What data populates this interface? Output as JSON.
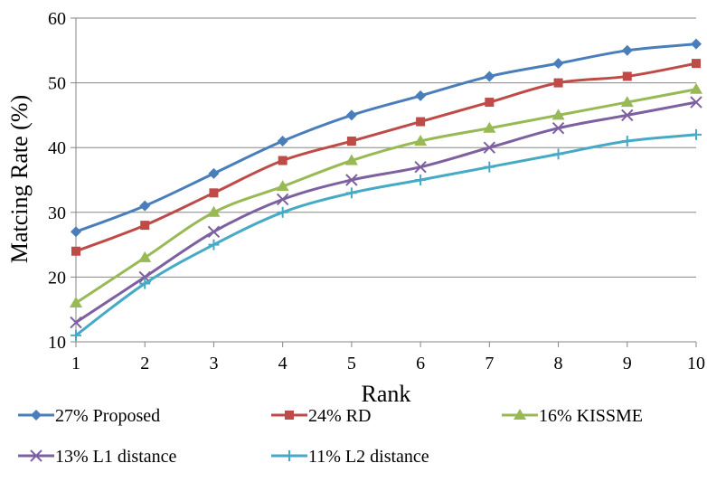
{
  "chart_data": {
    "type": "line",
    "title": "",
    "xlabel": "Rank",
    "ylabel": "Matcing Rate (%)",
    "x": [
      1,
      2,
      3,
      4,
      5,
      6,
      7,
      8,
      9,
      10
    ],
    "xlim": [
      1,
      10
    ],
    "ylim": [
      10,
      60
    ],
    "yticks": [
      10,
      20,
      30,
      40,
      50,
      60
    ],
    "grid": "horizontal",
    "legend_position": "bottom",
    "series": [
      {
        "name": "27% Proposed",
        "marker": "diamond",
        "color": "#4a7ebb",
        "values": [
          27,
          31,
          36,
          41,
          45,
          48,
          51,
          53,
          55,
          56
        ]
      },
      {
        "name": "24% RD",
        "marker": "square",
        "color": "#be4b48",
        "values": [
          24,
          28,
          33,
          38,
          41,
          44,
          47,
          50,
          51,
          53
        ]
      },
      {
        "name": "16% KISSME",
        "marker": "triangle",
        "color": "#98b954",
        "values": [
          16,
          23,
          30,
          34,
          38,
          41,
          43,
          45,
          47,
          49
        ]
      },
      {
        "name": "13% L1 distance",
        "marker": "x",
        "color": "#7d60a0",
        "values": [
          13,
          20,
          27,
          32,
          35,
          37,
          40,
          43,
          45,
          47
        ]
      },
      {
        "name": "11% L2 distance",
        "marker": "plus",
        "color": "#46aac5",
        "values": [
          11,
          19,
          25,
          30,
          33,
          35,
          37,
          39,
          41,
          42
        ]
      }
    ]
  }
}
